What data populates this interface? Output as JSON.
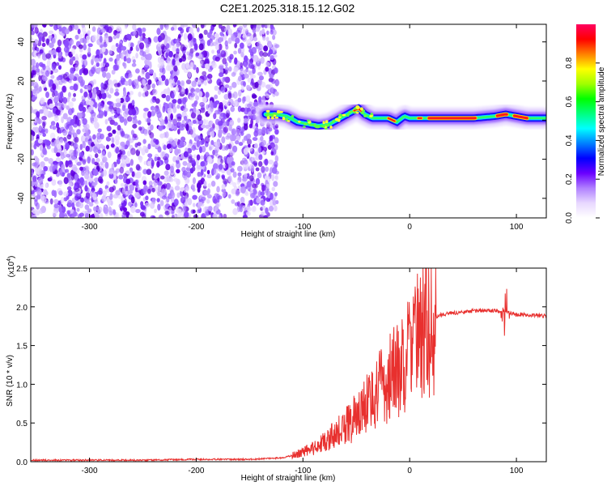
{
  "title": "C2E1.2025.318.15.12.G02",
  "chart_data": [
    {
      "type": "heatmap",
      "title": "C2E1.2025.318.15.12.G02",
      "xlabel": "Height of straight line (km)",
      "ylabel": "Frequency (Hz)",
      "xlim": [
        -355,
        128
      ],
      "ylim": [
        -50,
        49
      ],
      "xticks": [
        -300,
        -200,
        -100,
        0,
        100
      ],
      "yticks": [
        -40,
        -20,
        0,
        20,
        40
      ],
      "ridge": {
        "x": [
          -135,
          -125,
          -115,
          -105,
          -95,
          -85,
          -75,
          -65,
          -55,
          -48,
          -42,
          -35,
          -28,
          -20,
          -12,
          -5,
          0,
          10,
          20,
          40,
          60,
          80,
          90,
          100,
          110,
          128
        ],
        "y": [
          3,
          3,
          2,
          -1,
          -2,
          -3,
          -2,
          1,
          4,
          6,
          3,
          1,
          1,
          1,
          -1,
          2,
          1,
          1,
          1,
          1,
          1,
          2,
          3,
          2,
          1,
          1
        ]
      },
      "noise_region_x": [
        -355,
        -130
      ],
      "colorbar": {
        "label": "Normalized spectral amplitude",
        "range": [
          0.0,
          1.0
        ],
        "ticks": [
          "0.0",
          "0.2",
          "0.4",
          "0.6",
          "0.8"
        ],
        "colors": [
          "#ffffff",
          "#e8d8ff",
          "#b080ff",
          "#6a00ff",
          "#0000ff",
          "#0080ff",
          "#00ffff",
          "#00ff80",
          "#00ff00",
          "#a0ff00",
          "#ffff00",
          "#ff8000",
          "#ff0000",
          "#ff0060"
        ]
      }
    },
    {
      "type": "line",
      "xlabel": "Height of straight line (km)",
      "ylabel": "SNR (10 * v/v)",
      "yscale_label": "(x10",
      "yscale_exp": "4",
      "xlim": [
        -355,
        128
      ],
      "ylim": [
        0.0,
        2.5
      ],
      "xticks": [
        -300,
        -200,
        -100,
        0,
        100
      ],
      "yticks": [
        "0.0",
        "0.5",
        "1.0",
        "1.5",
        "2.0",
        "2.5"
      ],
      "line_color": "#e8302e",
      "series": [
        {
          "x": [
            -355,
            -300,
            -250,
            -200,
            -150,
            -120,
            -110,
            -100,
            -90,
            -80,
            -70,
            -60,
            -50,
            -40,
            -30,
            -20,
            -10,
            0,
            5,
            10,
            15,
            20,
            30,
            40,
            50,
            60,
            70,
            80,
            90,
            95,
            100,
            110,
            128
          ],
          "y": [
            0.02,
            0.02,
            0.02,
            0.03,
            0.03,
            0.05,
            0.08,
            0.12,
            0.18,
            0.25,
            0.35,
            0.45,
            0.6,
            0.75,
            0.9,
            1.05,
            1.2,
            1.4,
            1.55,
            1.7,
            1.8,
            1.85,
            1.9,
            1.92,
            1.93,
            1.95,
            1.95,
            1.95,
            1.94,
            1.92,
            1.9,
            1.9,
            1.88
          ]
        }
      ]
    }
  ]
}
